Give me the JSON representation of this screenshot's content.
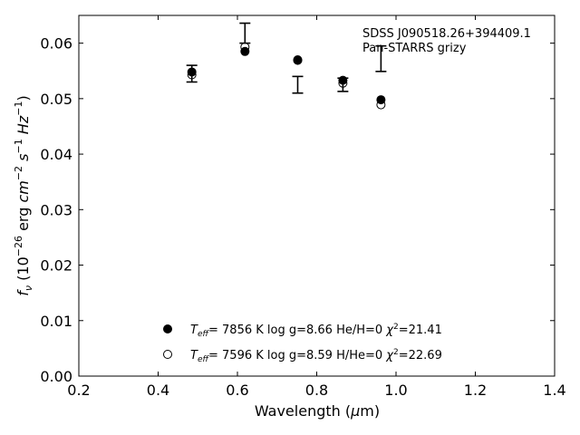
{
  "chart_data": {
    "type": "scatter",
    "annotation": {
      "object": "SDSS J090518.26+394409.1",
      "survey": "Pan-STARRS grizy"
    },
    "xlabel": "Wavelength (μm)",
    "ylabel": "fν (10⁻²⁶ erg cm⁻² s⁻¹ Hz⁻¹)",
    "xlim": [
      0.2,
      1.4
    ],
    "ylim": [
      0.0,
      0.065
    ],
    "xticks": [
      0.2,
      0.4,
      0.6,
      0.8,
      1.0,
      1.2,
      1.4
    ],
    "xtick_labels": [
      "0.2",
      "0.4",
      "0.6",
      "0.8",
      "1.0",
      "1.2",
      "1.4"
    ],
    "yticks": [
      0.0,
      0.01,
      0.02,
      0.03,
      0.04,
      0.05,
      0.06
    ],
    "ytick_labels": [
      "0.00",
      "0.01",
      "0.02",
      "0.03",
      "0.04",
      "0.05",
      "0.06"
    ],
    "grid": false,
    "legend_position": "bottom-center",
    "observed": {
      "x": [
        0.485,
        0.619,
        0.752,
        0.866,
        0.962
      ],
      "y": [
        0.0545,
        0.0618,
        0.0525,
        0.0525,
        0.0572
      ],
      "yerr": [
        0.0015,
        0.0018,
        0.0015,
        0.0012,
        0.0023
      ]
    },
    "series": [
      {
        "label": "T_eff=  7856 K  log g=8.66  He/H=0  χ²=21.41",
        "marker": "filled-circle",
        "x": [
          0.485,
          0.619,
          0.752,
          0.866,
          0.962
        ],
        "y": [
          0.0548,
          0.0585,
          0.057,
          0.0533,
          0.0498
        ]
      },
      {
        "label": "T_eff=  7596 K  log g=8.59  H/He=0  χ²=22.69",
        "marker": "open-circle",
        "x": [
          0.485,
          0.619,
          0.752,
          0.866,
          0.962
        ],
        "y": [
          0.0543,
          0.0593,
          0.0569,
          0.0528,
          0.0489
        ]
      }
    ]
  }
}
